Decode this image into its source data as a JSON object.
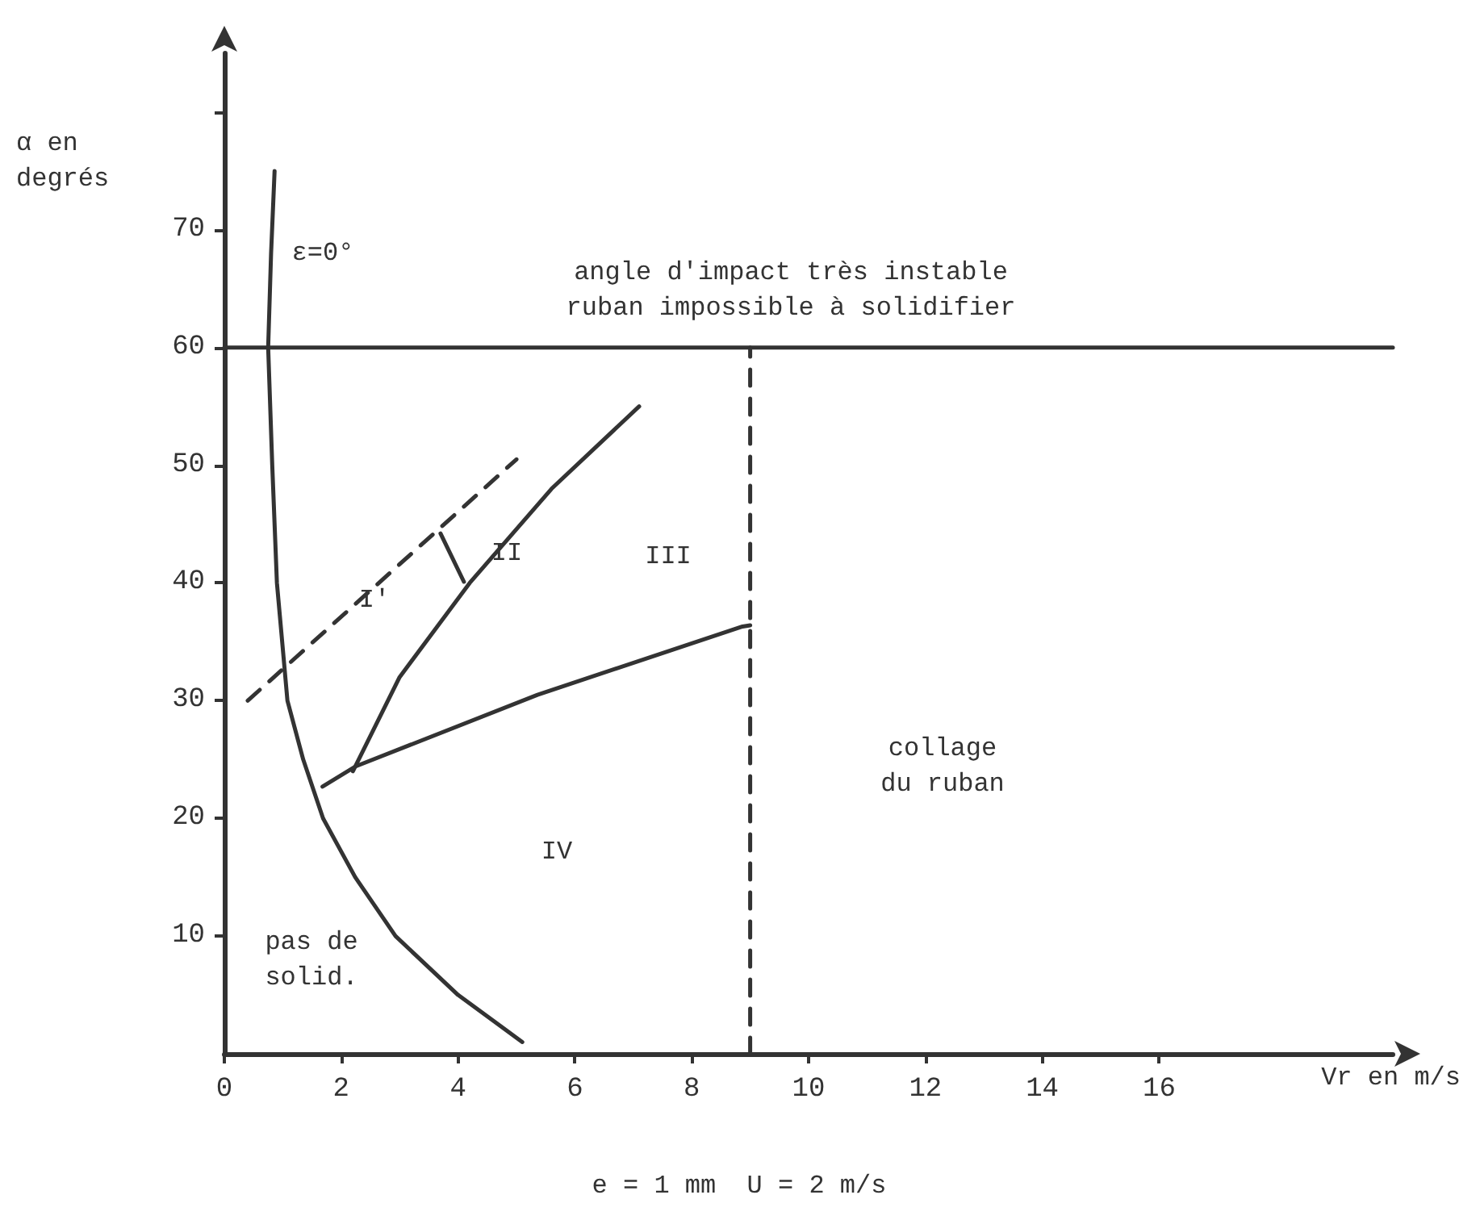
{
  "chart_data": {
    "type": "line",
    "xlabel": "Vr en m/s",
    "ylabel": "α en\ndegrés",
    "marker": "none",
    "xlim": [
      0,
      20
    ],
    "ylim": [
      0,
      85
    ],
    "xticks": [
      0,
      2,
      4,
      6,
      8,
      10,
      12,
      14,
      16
    ],
    "yticks": [
      10,
      20,
      30,
      40,
      50,
      60,
      70,
      {
        "value": 80,
        "label": null
      }
    ],
    "series": [
      {
        "color": "#333333",
        "line_style": "solid",
        "x": [
          0.86,
          0.8,
          0.75,
          0.82,
          0.9,
          1.08,
          1.35,
          1.69,
          2.24,
          2.93,
          4.0,
          5.1
        ],
        "values": [
          75,
          68,
          60,
          50,
          40,
          30,
          25,
          20,
          15,
          10,
          5,
          1
        ]
      },
      {
        "color": "#333333",
        "line_style": "dashed",
        "x": [
          0.4,
          5.0
        ],
        "values": [
          30,
          50.5
        ]
      },
      {
        "color": "#333333",
        "line_style": "solid",
        "x": [
          2.2,
          3.0,
          4.2,
          5.6,
          7.1
        ],
        "values": [
          24,
          32,
          40,
          48,
          55
        ]
      },
      {
        "color": "#333333",
        "line_style": "solid",
        "x": [
          1.68,
          2.24,
          5.36,
          8.87,
          9.0
        ],
        "values": [
          22.7,
          24.4,
          30.5,
          36.3,
          36.4
        ]
      },
      {
        "color": "#333333",
        "line_style": "solid",
        "x": [
          3.7,
          4.1
        ],
        "values": [
          44.2,
          40.1
        ]
      },
      {
        "color": "#333333",
        "line_style": "solid",
        "x": [
          0,
          20
        ],
        "values": [
          60,
          60
        ]
      },
      {
        "color": "#333333",
        "line_style": "dashed",
        "x": [
          9,
          9
        ],
        "values": [
          0,
          60
        ]
      }
    ],
    "annotations": [
      "ε=0°",
      "angle d'impact très instable\nruban impossible à solidifier",
      "I'",
      "II",
      "III",
      "IV",
      "pas de\nsolid.",
      "collage\ndu ruban",
      "e = 1 mm  U = 2 m/s"
    ]
  }
}
